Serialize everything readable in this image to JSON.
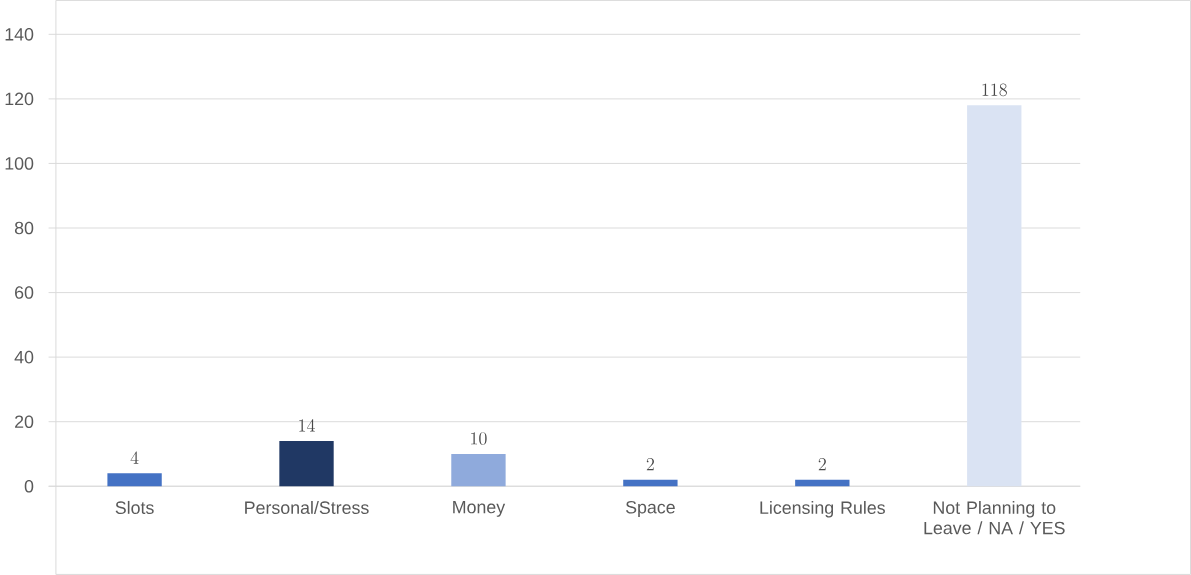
{
  "chart_data": {
    "type": "bar",
    "categories": [
      "Slots",
      "Personal/Stress",
      "Money",
      "Space",
      "Licensing Rules",
      "Not Planning to Leave / NA / YES"
    ],
    "values": [
      4,
      14,
      10,
      2,
      2,
      118
    ],
    "colors": [
      "#4472c4",
      "#203864",
      "#8faadc",
      "#4472c4",
      "#4472c4",
      "#dae3f3"
    ],
    "ylim": [
      0,
      140
    ],
    "yticks": [
      0,
      20,
      40,
      60,
      80,
      100,
      120,
      140
    ],
    "grid": "y",
    "data_labels": true
  }
}
